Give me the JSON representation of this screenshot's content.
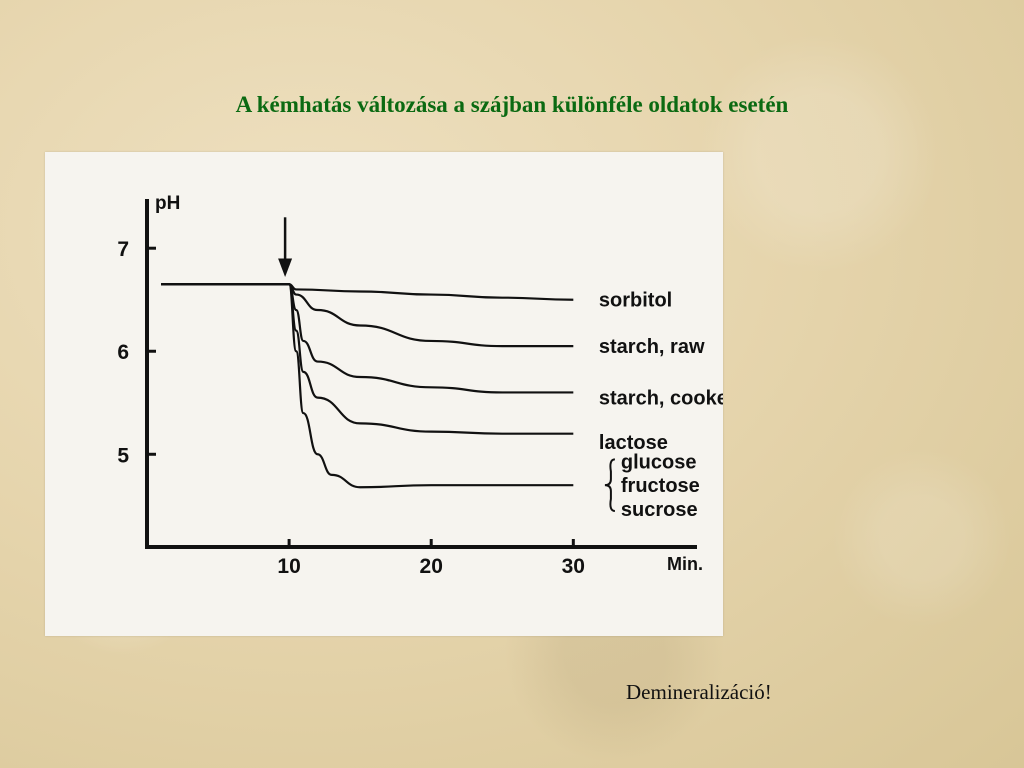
{
  "slide": {
    "title": "A kémhatás változása a szájban különféle oldatok esetén",
    "note": "Demineralizáció!"
  },
  "chart_data": {
    "type": "line",
    "title": "",
    "xlabel": "Min.",
    "ylabel": "pH",
    "xlim": [
      0,
      38
    ],
    "ylim": [
      4.1,
      7.4
    ],
    "x_ticks": [
      10,
      20,
      30
    ],
    "y_ticks": [
      5,
      6,
      7
    ],
    "grid": false,
    "legend": "inline-right",
    "marker": {
      "type": "arrow",
      "x": 10
    },
    "group_labels": [
      "glucose",
      "fructose",
      "sucrose"
    ],
    "series": [
      {
        "name": "sorbitol",
        "x": [
          1,
          10,
          10.5,
          15,
          20,
          25,
          30
        ],
        "y": [
          6.65,
          6.65,
          6.6,
          6.58,
          6.55,
          6.52,
          6.5
        ]
      },
      {
        "name": "starch, raw",
        "x": [
          1,
          10,
          10.5,
          12,
          15,
          20,
          25,
          30
        ],
        "y": [
          6.65,
          6.65,
          6.55,
          6.4,
          6.25,
          6.1,
          6.05,
          6.05
        ]
      },
      {
        "name": "starch, cooked",
        "x": [
          1,
          10,
          10.5,
          11,
          12,
          15,
          20,
          25,
          30
        ],
        "y": [
          6.65,
          6.65,
          6.4,
          6.1,
          5.9,
          5.75,
          5.65,
          5.6,
          5.6
        ]
      },
      {
        "name": "lactose",
        "x": [
          1,
          10,
          10.5,
          11,
          12,
          15,
          20,
          25,
          30
        ],
        "y": [
          6.65,
          6.65,
          6.2,
          5.8,
          5.55,
          5.3,
          5.22,
          5.2,
          5.2
        ]
      },
      {
        "name": "",
        "x": [
          1,
          10,
          10.5,
          11,
          12,
          13,
          15,
          20,
          25,
          30
        ],
        "y": [
          6.65,
          6.65,
          6.0,
          5.4,
          5.0,
          4.8,
          4.68,
          4.7,
          4.7,
          4.7
        ]
      }
    ]
  }
}
